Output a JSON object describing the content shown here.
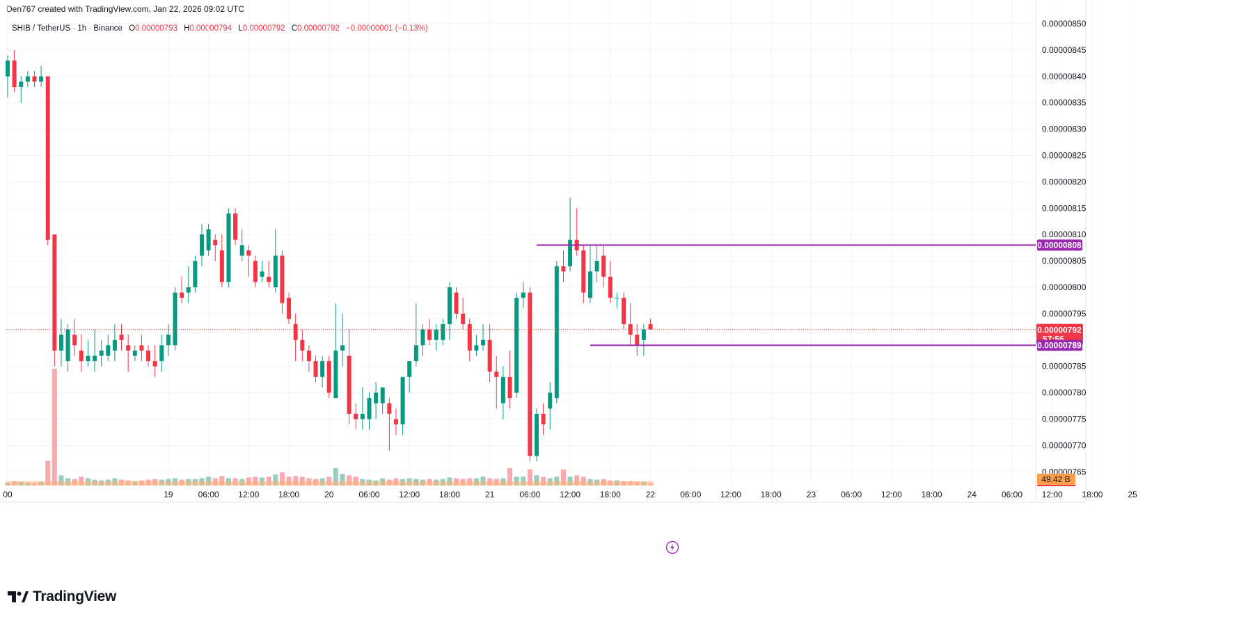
{
  "header": {
    "created_by": "Den767 created with TradingView.com, Jan 22, 2026 09:02 UTC"
  },
  "legend": {
    "symbol": "SHIB / TetherUS · 1h · Binance",
    "o_label": "O",
    "o_value": "0.00000793",
    "h_label": "H",
    "h_value": "0.00000794",
    "l_label": "L",
    "l_value": "0.00000792",
    "c_label": "C",
    "c_value": "0.00000792",
    "change": "−0.00000001 (−0.13%)"
  },
  "brand": {
    "name": "TradingView"
  },
  "colors": {
    "up": "#089981",
    "down": "#f23645",
    "level_line": "#9c27b0",
    "vol_up": "#89c9b8",
    "vol_down": "#faa1a4",
    "vol_neutral": "#ffb27a",
    "grid": "#f0f3fa",
    "price_tag": "#f23645",
    "volume_tag": "#ff9e48"
  },
  "chart_data": {
    "type": "candlestick",
    "symbol": "SHIB / TetherUS",
    "interval": "1h",
    "exchange": "Binance",
    "y_ticks": [
      "0.00000850",
      "0.00000845",
      "0.00000840",
      "0.00000835",
      "0.00000830",
      "0.00000825",
      "0.00000820",
      "0.00000815",
      "0.00000810",
      "0.00000805",
      "0.00000800",
      "0.00000795",
      "0.00000785",
      "0.00000780",
      "0.00000775",
      "0.00000770",
      "0.00000765"
    ],
    "ylim": [
      7.63e-06,
      8.52e-06
    ],
    "x_ticks": [
      "00",
      "19",
      "06:00",
      "12:00",
      "18:00",
      "20",
      "06:00",
      "12:00",
      "18:00",
      "21",
      "06:00",
      "12:00",
      "18:00",
      "22",
      "06:00",
      "12:00",
      "18:00",
      "23",
      "06:00",
      "12:00",
      "18:00",
      "24",
      "06:00",
      "12:00",
      "18:00",
      "25"
    ],
    "x_tick_hours": [
      0,
      24,
      30,
      36,
      42,
      48,
      54,
      60,
      66,
      72,
      78,
      84,
      90,
      96,
      102,
      108,
      114,
      120,
      126,
      132,
      138,
      144,
      150,
      156,
      162,
      168
    ],
    "first_candle_hour": 0,
    "candles_ohlc": [
      [
        8.4e-06,
        8.44e-06,
        8.36e-06,
        8.43e-06
      ],
      [
        8.43e-06,
        8.45e-06,
        8.37e-06,
        8.38e-06
      ],
      [
        8.38e-06,
        8.4e-06,
        8.35e-06,
        8.39e-06
      ],
      [
        8.39e-06,
        8.41e-06,
        8.38e-06,
        8.4e-06
      ],
      [
        8.4e-06,
        8.41e-06,
        8.38e-06,
        8.39e-06
      ],
      [
        8.39e-06,
        8.42e-06,
        8.38e-06,
        8.4e-06
      ],
      [
        8.4e-06,
        8.4e-06,
        8.08e-06,
        8.09e-06
      ],
      [
        8.1e-06,
        8.1e-06,
        7.85e-06,
        7.88e-06
      ],
      [
        7.88e-06,
        7.94e-06,
        7.85e-06,
        7.91e-06
      ],
      [
        7.86e-06,
        7.93e-06,
        7.84e-06,
        7.92e-06
      ],
      [
        7.91e-06,
        7.94e-06,
        7.87e-06,
        7.89e-06
      ],
      [
        7.88e-06,
        7.91e-06,
        7.84e-06,
        7.86e-06
      ],
      [
        7.86e-06,
        7.9e-06,
        7.85e-06,
        7.87e-06
      ],
      [
        7.86e-06,
        7.92e-06,
        7.84e-06,
        7.87e-06
      ],
      [
        7.87e-06,
        7.9e-06,
        7.85e-06,
        7.88e-06
      ],
      [
        7.87e-06,
        7.91e-06,
        7.86e-06,
        7.89e-06
      ],
      [
        7.88e-06,
        7.93e-06,
        7.86e-06,
        7.9e-06
      ],
      [
        7.91e-06,
        7.93e-06,
        7.88e-06,
        7.9e-06
      ],
      [
        7.89e-06,
        7.91e-06,
        7.84e-06,
        7.88e-06
      ],
      [
        7.87e-06,
        7.89e-06,
        7.86e-06,
        7.88e-06
      ],
      [
        7.89e-06,
        7.91e-06,
        7.86e-06,
        7.88e-06
      ],
      [
        7.88e-06,
        7.89e-06,
        7.85e-06,
        7.86e-06
      ],
      [
        7.86e-06,
        7.89e-06,
        7.83e-06,
        7.85e-06
      ],
      [
        7.86e-06,
        7.91e-06,
        7.84e-06,
        7.89e-06
      ],
      [
        7.89e-06,
        7.93e-06,
        7.87e-06,
        7.91e-06
      ],
      [
        7.89e-06,
        8e-06,
        7.88e-06,
        7.99e-06
      ],
      [
        7.99e-06,
        8.02e-06,
        7.97e-06,
        7.98e-06
      ],
      [
        7.99e-06,
        8.04e-06,
        7.97e-06,
        8e-06
      ],
      [
        8e-06,
        8.06e-06,
        7.99e-06,
        8.05e-06
      ],
      [
        8.06e-06,
        8.12e-06,
        8.04e-06,
        8.1e-06
      ],
      [
        8.07e-06,
        8.12e-06,
        8.06e-06,
        8.11e-06
      ],
      [
        8.09e-06,
        8.1e-06,
        8.05e-06,
        8.08e-06
      ],
      [
        8.07e-06,
        8.1e-06,
        8e-06,
        8.01e-06
      ],
      [
        8.01e-06,
        8.15e-06,
        8e-06,
        8.14e-06
      ],
      [
        8.14e-06,
        8.15e-06,
        8.08e-06,
        8.09e-06
      ],
      [
        8.06e-06,
        8.11e-06,
        8.05e-06,
        8.08e-06
      ],
      [
        8.07e-06,
        8.08e-06,
        8.02e-06,
        8.06e-06
      ],
      [
        8.05e-06,
        8.06e-06,
        8e-06,
        8.01e-06
      ],
      [
        8.02e-06,
        8.05e-06,
        8.01e-06,
        8.03e-06
      ],
      [
        8.02e-06,
        8.05e-06,
        8e-06,
        8.01e-06
      ],
      [
        8e-06,
        8.11e-06,
        7.99e-06,
        8.06e-06
      ],
      [
        8.06e-06,
        8.07e-06,
        7.95e-06,
        7.97e-06
      ],
      [
        7.98e-06,
        7.99e-06,
        7.93e-06,
        7.94e-06
      ],
      [
        7.93e-06,
        7.95e-06,
        7.86e-06,
        7.9e-06
      ],
      [
        7.9e-06,
        7.92e-06,
        7.86e-06,
        7.88e-06
      ],
      [
        7.88e-06,
        7.89e-06,
        7.84e-06,
        7.86e-06
      ],
      [
        7.86e-06,
        7.87e-06,
        7.82e-06,
        7.83e-06
      ],
      [
        7.83e-06,
        7.87e-06,
        7.81e-06,
        7.86e-06
      ],
      [
        7.86e-06,
        7.87e-06,
        7.79e-06,
        7.8e-06
      ],
      [
        7.79e-06,
        7.97e-06,
        7.79e-06,
        7.88e-06
      ],
      [
        7.88e-06,
        7.95e-06,
        7.85e-06,
        7.89e-06
      ],
      [
        7.87e-06,
        7.92e-06,
        7.74e-06,
        7.76e-06
      ],
      [
        7.76e-06,
        7.78e-06,
        7.73e-06,
        7.75e-06
      ],
      [
        7.75e-06,
        7.81e-06,
        7.73e-06,
        7.76e-06
      ],
      [
        7.75e-06,
        7.8e-06,
        7.73e-06,
        7.79e-06
      ],
      [
        7.78e-06,
        7.82e-06,
        7.75e-06,
        7.8e-06
      ],
      [
        7.78e-06,
        7.81e-06,
        7.76e-06,
        7.81e-06
      ],
      [
        7.78e-06,
        7.79e-06,
        7.69e-06,
        7.76e-06
      ],
      [
        7.75e-06,
        7.77e-06,
        7.72e-06,
        7.74e-06
      ],
      [
        7.74e-06,
        7.81e-06,
        7.72e-06,
        7.83e-06
      ],
      [
        7.83e-06,
        7.86e-06,
        7.8e-06,
        7.86e-06
      ],
      [
        7.86e-06,
        7.97e-06,
        7.85e-06,
        7.89e-06
      ],
      [
        7.89e-06,
        7.93e-06,
        7.87e-06,
        7.92e-06
      ],
      [
        7.92e-06,
        7.94e-06,
        7.89e-06,
        7.9e-06
      ],
      [
        7.9e-06,
        7.93e-06,
        7.88e-06,
        7.92e-06
      ],
      [
        7.9e-06,
        7.94e-06,
        7.89e-06,
        7.93e-06
      ],
      [
        7.93e-06,
        8.01e-06,
        7.9e-06,
        8e-06
      ],
      [
        7.99e-06,
        8e-06,
        7.94e-06,
        7.95e-06
      ],
      [
        7.95e-06,
        7.98e-06,
        7.92e-06,
        7.93e-06
      ],
      [
        7.93e-06,
        7.94e-06,
        7.86e-06,
        7.88e-06
      ],
      [
        7.88e-06,
        7.91e-06,
        7.87e-06,
        7.89e-06
      ],
      [
        7.89e-06,
        7.93e-06,
        7.88e-06,
        7.9e-06
      ],
      [
        7.9e-06,
        7.93e-06,
        7.82e-06,
        7.84e-06
      ],
      [
        7.84e-06,
        7.87e-06,
        7.77e-06,
        7.83e-06
      ],
      [
        7.78e-06,
        7.85e-06,
        7.75e-06,
        7.83e-06
      ],
      [
        7.83e-06,
        7.88e-06,
        7.77e-06,
        7.79e-06
      ],
      [
        7.8e-06,
        7.99e-06,
        7.79e-06,
        7.98e-06
      ],
      [
        7.98e-06,
        8.01e-06,
        7.96e-06,
        7.99e-06
      ],
      [
        7.99e-06,
        8e-06,
        7.67e-06,
        7.68e-06
      ],
      [
        7.68e-06,
        7.77e-06,
        7.67e-06,
        7.76e-06
      ],
      [
        7.76e-06,
        7.78e-06,
        7.72e-06,
        7.74e-06
      ],
      [
        7.77e-06,
        7.82e-06,
        7.73e-06,
        7.8e-06
      ],
      [
        7.79e-06,
        8.05e-06,
        7.78e-06,
        8.04e-06
      ],
      [
        8.04e-06,
        8.07e-06,
        8.01e-06,
        8.03e-06
      ],
      [
        8.04e-06,
        8.17e-06,
        8.03e-06,
        8.09e-06
      ],
      [
        8.09e-06,
        8.15e-06,
        8.06e-06,
        8.07e-06
      ],
      [
        8.07e-06,
        8.08e-06,
        7.97e-06,
        7.99e-06
      ],
      [
        7.98e-06,
        8.08e-06,
        7.97e-06,
        8.03e-06
      ],
      [
        8.03e-06,
        8.08e-06,
        8.01e-06,
        8.05e-06
      ],
      [
        8.06e-06,
        8.08e-06,
        8e-06,
        8.02e-06
      ],
      [
        8.02e-06,
        8.05e-06,
        7.97e-06,
        7.98e-06
      ],
      [
        7.98e-06,
        7.99e-06,
        7.96e-06,
        7.98e-06
      ],
      [
        7.98e-06,
        7.99e-06,
        7.92e-06,
        7.93e-06
      ],
      [
        7.93e-06,
        7.97e-06,
        7.89e-06,
        7.91e-06
      ],
      [
        7.91e-06,
        7.93e-06,
        7.87e-06,
        7.89e-06
      ],
      [
        7.9e-06,
        7.93e-06,
        7.87e-06,
        7.92e-06
      ],
      [
        7.93e-06,
        7.94e-06,
        7.92e-06,
        7.92e-06
      ]
    ],
    "volumes": [
      2.0,
      3.0,
      2.5,
      2.0,
      1.8,
      2.5,
      17.0,
      80.0,
      7.0,
      5.0,
      4.5,
      6.0,
      5.0,
      4.0,
      3.5,
      4.0,
      5.0,
      4.0,
      3.5,
      3.0,
      3.5,
      4.0,
      4.5,
      4.0,
      4.5,
      5.0,
      4.0,
      4.5,
      4.5,
      5.0,
      6.0,
      5.0,
      6.5,
      5.0,
      5.0,
      4.5,
      5.5,
      6.0,
      5.5,
      6.0,
      7.5,
      9.0,
      6.0,
      6.5,
      6.0,
      5.0,
      4.5,
      5.0,
      6.0,
      12.0,
      8.0,
      7.0,
      6.0,
      4.5,
      4.0,
      3.5,
      5.0,
      4.0,
      5.0,
      4.5,
      5.0,
      4.5,
      4.0,
      4.5,
      4.0,
      4.5,
      5.5,
      5.0,
      4.5,
      5.0,
      5.0,
      6.0,
      5.0,
      4.5,
      5.0,
      12.0,
      6.0,
      6.0,
      11.0,
      7.0,
      6.0,
      5.0,
      6.0,
      11.0,
      6.0,
      7.0,
      6.0,
      4.5,
      4.0,
      4.5,
      3.5,
      3.5,
      3.0,
      3.0,
      2.5,
      2.5,
      1.5
    ],
    "volume_overlay_avg": 3.0,
    "horizontal_levels": [
      {
        "label": "0.00000808",
        "value": 8.08e-06,
        "from_candle": 79
      },
      {
        "label": "0.00000789",
        "value": 7.89e-06,
        "from_candle": 87
      }
    ],
    "last_price": {
      "label": "0.00000792",
      "value": 7.92e-06,
      "countdown": "57:56"
    },
    "volume_label": "49.42 B"
  }
}
